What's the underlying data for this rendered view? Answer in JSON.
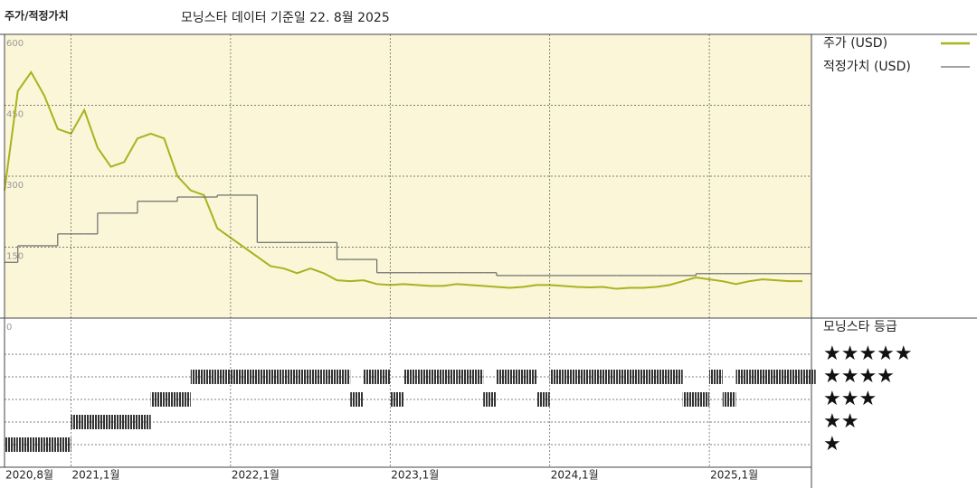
{
  "chart_data": [
    {
      "type": "line",
      "title": "주가/적정가치",
      "subtitle": "모닝스타 데이터 기준일 22. 8월 2025",
      "background": "#faf6d7",
      "x": [
        "2020-08",
        "2020-09",
        "2020-10",
        "2020-11",
        "2020-12",
        "2021-01",
        "2021-02",
        "2021-03",
        "2021-04",
        "2021-05",
        "2021-06",
        "2021-07",
        "2021-08",
        "2021-09",
        "2021-10",
        "2021-11",
        "2021-12",
        "2022-01",
        "2022-02",
        "2022-03",
        "2022-04",
        "2022-05",
        "2022-06",
        "2022-07",
        "2022-08",
        "2022-09",
        "2022-10",
        "2022-11",
        "2022-12",
        "2023-01",
        "2023-02",
        "2023-03",
        "2023-04",
        "2023-05",
        "2023-06",
        "2023-07",
        "2023-08",
        "2023-09",
        "2023-10",
        "2023-11",
        "2023-12",
        "2024-01",
        "2024-02",
        "2024-03",
        "2024-04",
        "2024-05",
        "2024-06",
        "2024-07",
        "2024-08",
        "2024-09",
        "2024-10",
        "2024-11",
        "2024-12",
        "2025-01",
        "2025-02",
        "2025-03",
        "2025-04",
        "2025-05",
        "2025-06",
        "2025-07",
        "2025-08"
      ],
      "ylim": [
        0,
        600
      ],
      "yticks": [
        0,
        150,
        300,
        450,
        600
      ],
      "grid": true,
      "series": [
        {
          "name": "주가 (USD)",
          "color": "#a9b21f",
          "values": [
            270,
            480,
            520,
            470,
            400,
            390,
            440,
            360,
            320,
            330,
            380,
            390,
            380,
            300,
            270,
            260,
            190,
            170,
            150,
            130,
            110,
            105,
            95,
            105,
            95,
            80,
            78,
            80,
            72,
            70,
            72,
            70,
            68,
            68,
            72,
            70,
            68,
            66,
            64,
            66,
            70,
            70,
            68,
            66,
            65,
            66,
            62,
            64,
            64,
            66,
            70,
            78,
            86,
            82,
            78,
            72,
            78,
            82,
            80,
            78,
            78
          ]
        },
        {
          "name": "적정가치 (USD)",
          "color": "#6b6b6b",
          "step": true,
          "values": [
            118,
            153,
            153,
            153,
            178,
            178,
            178,
            222,
            222,
            222,
            247,
            247,
            247,
            256,
            256,
            256,
            260,
            260,
            260,
            160,
            160,
            160,
            160,
            160,
            160,
            124,
            124,
            124,
            96,
            96,
            96,
            96,
            96,
            96,
            96,
            96,
            96,
            90,
            90,
            90,
            90,
            90,
            90,
            90,
            90,
            90,
            90,
            90,
            90,
            90,
            90,
            90,
            94,
            94,
            94,
            94,
            94,
            94,
            94,
            94,
            94
          ]
        }
      ]
    },
    {
      "type": "rating",
      "title": "모닝스타 등급",
      "color": "#333333",
      "x": [
        "2020-08",
        "2020-09",
        "2020-10",
        "2020-11",
        "2020-12",
        "2021-01",
        "2021-02",
        "2021-03",
        "2021-04",
        "2021-05",
        "2021-06",
        "2021-07",
        "2021-08",
        "2021-09",
        "2021-10",
        "2021-11",
        "2021-12",
        "2022-01",
        "2022-02",
        "2022-03",
        "2022-04",
        "2022-05",
        "2022-06",
        "2022-07",
        "2022-08",
        "2022-09",
        "2022-10",
        "2022-11",
        "2022-12",
        "2023-01",
        "2023-02",
        "2023-03",
        "2023-04",
        "2023-05",
        "2023-06",
        "2023-07",
        "2023-08",
        "2023-09",
        "2023-10",
        "2023-11",
        "2023-12",
        "2024-01",
        "2024-02",
        "2024-03",
        "2024-04",
        "2024-05",
        "2024-06",
        "2024-07",
        "2024-08",
        "2024-09",
        "2024-10",
        "2024-11",
        "2024-12",
        "2025-01",
        "2025-02",
        "2025-03",
        "2025-04",
        "2025-05",
        "2025-06",
        "2025-07",
        "2025-08"
      ],
      "values": [
        1,
        1,
        1,
        1,
        1,
        2,
        2,
        2,
        2,
        2,
        2,
        3,
        3,
        3,
        4,
        4,
        4,
        4,
        4,
        4,
        4,
        4,
        4,
        4,
        4,
        4,
        3,
        4,
        4,
        3,
        4,
        4,
        4,
        4,
        4,
        4,
        3,
        4,
        4,
        4,
        3,
        4,
        4,
        4,
        4,
        4,
        4,
        4,
        4,
        4,
        4,
        3,
        3,
        4,
        3,
        4,
        4,
        4,
        4,
        4,
        4
      ],
      "ylim": [
        0,
        6.6
      ],
      "yticks": [
        {
          "value": 5,
          "label": "★★★★★"
        },
        {
          "value": 4,
          "label": "★★★★"
        },
        {
          "value": 3,
          "label": "★★★"
        },
        {
          "value": 2,
          "label": "★★"
        },
        {
          "value": 1,
          "label": "★"
        }
      ],
      "xticks": [
        {
          "value": "2020-08",
          "label": "2020,8월"
        },
        {
          "value": "2021-01",
          "label": "2021,1월"
        },
        {
          "value": "2022-01",
          "label": "2022,1월"
        },
        {
          "value": "2023-01",
          "label": "2023,1월"
        },
        {
          "value": "2024-01",
          "label": "2024,1월"
        },
        {
          "value": "2025-01",
          "label": "2025,1월"
        }
      ]
    }
  ]
}
